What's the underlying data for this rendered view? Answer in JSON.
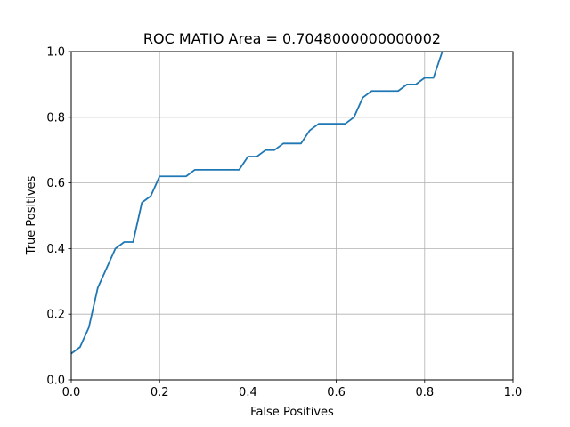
{
  "chart_data": {
    "type": "line",
    "title": "ROC MATIO Area = 0.7048000000000002",
    "xlabel": "False Positives",
    "ylabel": "True Positives",
    "xlim": [
      0,
      1
    ],
    "ylim": [
      0,
      1
    ],
    "grid": true,
    "xticks": [
      "0.0",
      "0.2",
      "0.4",
      "0.6",
      "0.8",
      "1.0"
    ],
    "yticks": [
      "0.0",
      "0.2",
      "0.4",
      "0.6",
      "0.8",
      "1.0"
    ],
    "line_color": "#1f77b4",
    "series": [
      {
        "x": [
          0.0,
          0.02,
          0.04,
          0.06,
          0.08,
          0.1,
          0.12,
          0.14,
          0.16,
          0.18,
          0.2,
          0.22,
          0.24,
          0.26,
          0.28,
          0.3,
          0.32,
          0.34,
          0.36,
          0.38,
          0.4,
          0.42,
          0.44,
          0.46,
          0.48,
          0.5,
          0.52,
          0.54,
          0.56,
          0.58,
          0.6,
          0.62,
          0.64,
          0.66,
          0.68,
          0.7,
          0.72,
          0.74,
          0.76,
          0.78,
          0.8,
          0.82,
          0.84,
          1.0
        ],
        "y": [
          0.08,
          0.1,
          0.16,
          0.28,
          0.34,
          0.4,
          0.42,
          0.42,
          0.54,
          0.56,
          0.62,
          0.62,
          0.62,
          0.62,
          0.64,
          0.64,
          0.64,
          0.64,
          0.64,
          0.64,
          0.68,
          0.68,
          0.7,
          0.7,
          0.72,
          0.72,
          0.72,
          0.76,
          0.78,
          0.78,
          0.78,
          0.78,
          0.8,
          0.86,
          0.88,
          0.88,
          0.88,
          0.88,
          0.9,
          0.9,
          0.92,
          0.92,
          1.0,
          1.0
        ]
      }
    ]
  }
}
